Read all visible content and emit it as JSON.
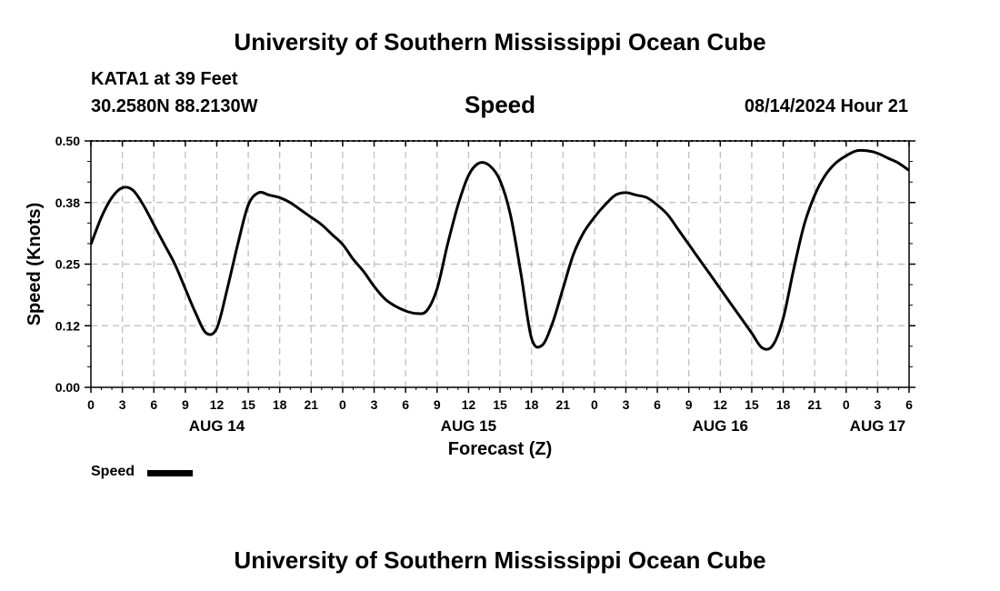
{
  "header": {
    "title": "University of Southern Mississippi Ocean Cube",
    "station": "KATA1 at 39 Feet",
    "coords": "30.2580N  88.2130W",
    "variable": "Speed",
    "issued": "08/14/2024 Hour 21"
  },
  "legend": {
    "label": "Speed"
  },
  "footer": {
    "title": "University of Southern Mississippi Ocean Cube"
  },
  "chart_data": {
    "type": "line",
    "title": "Speed",
    "xlabel": "Forecast (Z)",
    "ylabel": "Speed (Knots)",
    "ylim": [
      0,
      0.5
    ],
    "yticks": [
      "0.00",
      "0.12",
      "0.25",
      "0.38",
      "0.50"
    ],
    "ytick_values": [
      0,
      0.125,
      0.25,
      0.375,
      0.5
    ],
    "xlim": [
      0,
      78
    ],
    "xticks": [
      "0",
      "3",
      "6",
      "9",
      "12",
      "15",
      "18",
      "21",
      "0",
      "3",
      "6",
      "9",
      "12",
      "15",
      "18",
      "21",
      "0",
      "3",
      "6",
      "9",
      "12",
      "15",
      "18",
      "21",
      "0",
      "3",
      "6"
    ],
    "day_labels": [
      {
        "label": "AUG 14",
        "at_hour": 12
      },
      {
        "label": "AUG 15",
        "at_hour": 36
      },
      {
        "label": "AUG 16",
        "at_hour": 60
      },
      {
        "label": "AUG 17",
        "at_hour": 75
      }
    ],
    "series": [
      {
        "name": "Speed",
        "x": [
          0,
          1,
          2,
          3,
          4,
          5,
          6,
          7,
          8,
          9,
          10,
          11,
          12,
          13,
          14,
          15,
          16,
          17,
          18,
          19,
          20,
          21,
          22,
          23,
          24,
          25,
          26,
          27,
          28,
          29,
          30,
          31,
          32,
          33,
          34,
          35,
          36,
          37,
          38,
          39,
          40,
          41,
          42,
          43,
          44,
          45,
          46,
          47,
          48,
          49,
          50,
          51,
          52,
          53,
          54,
          55,
          56,
          57,
          58,
          59,
          60,
          61,
          62,
          63,
          64,
          65,
          66,
          67,
          68,
          69,
          70,
          71,
          72,
          73,
          74,
          75,
          76,
          77,
          78
        ],
        "values": [
          0.29,
          0.345,
          0.385,
          0.405,
          0.4,
          0.37,
          0.33,
          0.29,
          0.25,
          0.2,
          0.15,
          0.11,
          0.12,
          0.2,
          0.29,
          0.37,
          0.395,
          0.39,
          0.385,
          0.375,
          0.36,
          0.345,
          0.33,
          0.31,
          0.29,
          0.26,
          0.235,
          0.205,
          0.18,
          0.165,
          0.155,
          0.15,
          0.155,
          0.2,
          0.29,
          0.37,
          0.43,
          0.455,
          0.45,
          0.42,
          0.35,
          0.23,
          0.1,
          0.085,
          0.13,
          0.2,
          0.27,
          0.315,
          0.345,
          0.37,
          0.39,
          0.395,
          0.39,
          0.385,
          0.37,
          0.35,
          0.32,
          0.29,
          0.26,
          0.23,
          0.2,
          0.17,
          0.14,
          0.11,
          0.08,
          0.085,
          0.14,
          0.24,
          0.33,
          0.39,
          0.43,
          0.455,
          0.47,
          0.48,
          0.48,
          0.475,
          0.465,
          0.455,
          0.44
        ]
      }
    ],
    "grid": true,
    "legend_position": "bottom-left"
  }
}
